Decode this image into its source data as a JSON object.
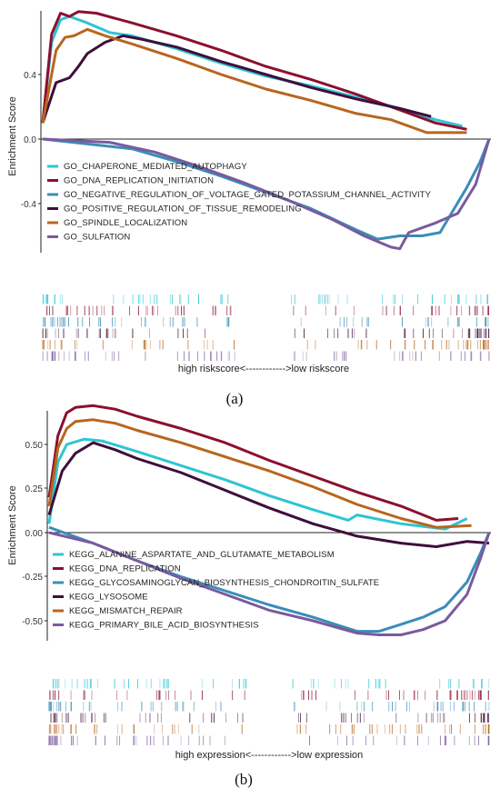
{
  "figure": {
    "panels": [
      {
        "panel_label": "(a)",
        "ylabel": "Enrichment Score",
        "rank_caption": "high riskscore<------------>low riskscore",
        "yticks": [
          "0.4",
          "0.0",
          "-0.4"
        ]
      },
      {
        "panel_label": "(b)",
        "ylabel": "Enrichment Score",
        "rank_caption": "high expression<------------>low expression",
        "yticks": [
          "0.50",
          "0.25",
          "0.00",
          "-0.25",
          "-0.50"
        ]
      }
    ]
  },
  "chart_data": [
    {
      "type": "line",
      "title": "",
      "xlabel": "",
      "ylabel": "Enrichment Score",
      "ylim": [
        -0.9,
        0.98
      ],
      "yticks": [
        0.4,
        0.0,
        -0.4
      ],
      "xlim": [
        0,
        1
      ],
      "grid": false,
      "legend_position": "bottom-left",
      "series": [
        {
          "name": "GO_CHAPERONE_MEDIATED_AUTOPHAGY",
          "color": "#2ec5d3",
          "x": [
            0,
            0.02,
            0.04,
            0.06,
            0.1,
            0.15,
            0.2,
            0.3,
            0.4,
            0.5,
            0.6,
            0.7,
            0.8,
            0.88,
            0.94
          ],
          "y": [
            0.1,
            0.6,
            0.74,
            0.76,
            0.72,
            0.66,
            0.64,
            0.56,
            0.47,
            0.39,
            0.33,
            0.26,
            0.19,
            0.12,
            0.08
          ]
        },
        {
          "name": "GO_DNA_REPLICATION_INITIATION",
          "color": "#8b1030",
          "x": [
            0,
            0.02,
            0.04,
            0.06,
            0.08,
            0.12,
            0.2,
            0.3,
            0.4,
            0.5,
            0.6,
            0.7,
            0.8,
            0.88,
            0.95
          ],
          "y": [
            0.1,
            0.65,
            0.78,
            0.76,
            0.79,
            0.78,
            0.72,
            0.64,
            0.55,
            0.45,
            0.37,
            0.28,
            0.18,
            0.1,
            0.06
          ]
        },
        {
          "name": "GO_NEGATIVE_REGULATION_OF_VOLTAGE_GATED_POTASSIUM_CHANNEL_ACTIVITY",
          "color": "#3a8db8",
          "x": [
            0,
            0.2,
            0.3,
            0.4,
            0.5,
            0.6,
            0.7,
            0.75,
            0.8,
            0.85,
            0.89,
            0.92,
            0.95,
            0.98,
            1.0
          ],
          "y": [
            0.0,
            -0.06,
            -0.14,
            -0.23,
            -0.33,
            -0.43,
            -0.56,
            -0.62,
            -0.6,
            -0.6,
            -0.58,
            -0.44,
            -0.3,
            -0.14,
            0.0
          ]
        },
        {
          "name": "GO_POSITIVE_REGULATION_OF_TISSUE_REMODELING",
          "color": "#3e0f3a",
          "x": [
            0,
            0.03,
            0.06,
            0.08,
            0.1,
            0.14,
            0.18,
            0.22,
            0.3,
            0.4,
            0.5,
            0.6,
            0.7,
            0.8,
            0.87
          ],
          "y": [
            0.1,
            0.35,
            0.38,
            0.45,
            0.53,
            0.6,
            0.64,
            0.62,
            0.57,
            0.48,
            0.4,
            0.32,
            0.25,
            0.19,
            0.14
          ]
        },
        {
          "name": "GO_SPINDLE_LOCALIZATION",
          "color": "#b8661e",
          "x": [
            0,
            0.03,
            0.05,
            0.07,
            0.1,
            0.14,
            0.2,
            0.3,
            0.4,
            0.5,
            0.6,
            0.7,
            0.78,
            0.86,
            0.95
          ],
          "y": [
            0.1,
            0.55,
            0.63,
            0.64,
            0.68,
            0.64,
            0.59,
            0.5,
            0.4,
            0.31,
            0.24,
            0.16,
            0.12,
            0.04,
            0.04
          ]
        },
        {
          "name": "GO_SULFATION",
          "color": "#7a5a9e",
          "x": [
            0,
            0.15,
            0.25,
            0.35,
            0.45,
            0.55,
            0.65,
            0.72,
            0.78,
            0.8,
            0.82,
            0.88,
            0.93,
            0.97,
            1.0
          ],
          "y": [
            0.0,
            -0.02,
            -0.08,
            -0.17,
            -0.27,
            -0.38,
            -0.5,
            -0.6,
            -0.67,
            -0.68,
            -0.58,
            -0.52,
            -0.46,
            -0.28,
            0.0
          ]
        }
      ]
    },
    {
      "type": "line",
      "title": "",
      "xlabel": "",
      "ylabel": "Enrichment Score",
      "ylim": [
        -0.62,
        0.78
      ],
      "yticks": [
        0.5,
        0.25,
        0.0,
        -0.25,
        -0.5
      ],
      "xlim": [
        0,
        1
      ],
      "grid": false,
      "legend_position": "bottom-left",
      "series": [
        {
          "name": "KEGG_ALANINE_ASPARTATE_AND_GLUTAMATE_METABOLISM",
          "color": "#2ec5d3",
          "x": [
            0,
            0.02,
            0.04,
            0.08,
            0.12,
            0.2,
            0.3,
            0.4,
            0.5,
            0.6,
            0.68,
            0.7,
            0.8,
            0.9,
            0.95
          ],
          "y": [
            0.05,
            0.4,
            0.5,
            0.53,
            0.52,
            0.46,
            0.38,
            0.3,
            0.21,
            0.13,
            0.07,
            0.1,
            0.05,
            0.02,
            0.08
          ]
        },
        {
          "name": "KEGG_DNA_REPLICATION",
          "color": "#8b1030",
          "x": [
            0,
            0.02,
            0.04,
            0.06,
            0.1,
            0.15,
            0.2,
            0.3,
            0.4,
            0.5,
            0.6,
            0.7,
            0.8,
            0.88,
            0.93
          ],
          "y": [
            0.2,
            0.55,
            0.68,
            0.71,
            0.72,
            0.7,
            0.66,
            0.59,
            0.51,
            0.41,
            0.32,
            0.23,
            0.15,
            0.07,
            0.08
          ]
        },
        {
          "name": "KEGG_GLYCOSAMINOGLYCAN_BIOSYNTHESIS_CHONDROITIN_SULFATE",
          "color": "#3a8db8",
          "x": [
            0,
            0.1,
            0.2,
            0.3,
            0.4,
            0.5,
            0.6,
            0.7,
            0.75,
            0.8,
            0.85,
            0.9,
            0.95,
            0.98,
            1.0
          ],
          "y": [
            0.03,
            -0.06,
            -0.16,
            -0.25,
            -0.33,
            -0.41,
            -0.48,
            -0.56,
            -0.56,
            -0.52,
            -0.48,
            -0.42,
            -0.28,
            -0.12,
            0.0
          ]
        },
        {
          "name": "KEGG_LYSOSOME",
          "color": "#3e0f3a",
          "x": [
            0,
            0.03,
            0.06,
            0.1,
            0.15,
            0.2,
            0.3,
            0.4,
            0.5,
            0.6,
            0.7,
            0.8,
            0.88,
            0.95,
            1.0
          ],
          "y": [
            0.1,
            0.35,
            0.45,
            0.51,
            0.47,
            0.42,
            0.34,
            0.24,
            0.14,
            0.05,
            -0.02,
            -0.06,
            -0.08,
            -0.05,
            -0.06
          ]
        },
        {
          "name": "KEGG_MISMATCH_REPAIR",
          "color": "#b8661e",
          "x": [
            0,
            0.02,
            0.04,
            0.06,
            0.1,
            0.15,
            0.2,
            0.3,
            0.4,
            0.5,
            0.6,
            0.7,
            0.8,
            0.88,
            0.96
          ],
          "y": [
            0.15,
            0.48,
            0.59,
            0.63,
            0.64,
            0.62,
            0.58,
            0.51,
            0.43,
            0.35,
            0.26,
            0.16,
            0.08,
            0.03,
            0.04
          ]
        },
        {
          "name": "KEGG_PRIMARY_BILE_ACID_BIOSYNTHESIS",
          "color": "#7a5a9e",
          "x": [
            0,
            0.1,
            0.2,
            0.3,
            0.4,
            0.5,
            0.6,
            0.7,
            0.75,
            0.8,
            0.85,
            0.9,
            0.95,
            0.98,
            1.0
          ],
          "y": [
            0.0,
            -0.06,
            -0.16,
            -0.26,
            -0.35,
            -0.44,
            -0.5,
            -0.57,
            -0.58,
            -0.58,
            -0.55,
            -0.5,
            -0.35,
            -0.15,
            0.0
          ]
        }
      ]
    }
  ]
}
